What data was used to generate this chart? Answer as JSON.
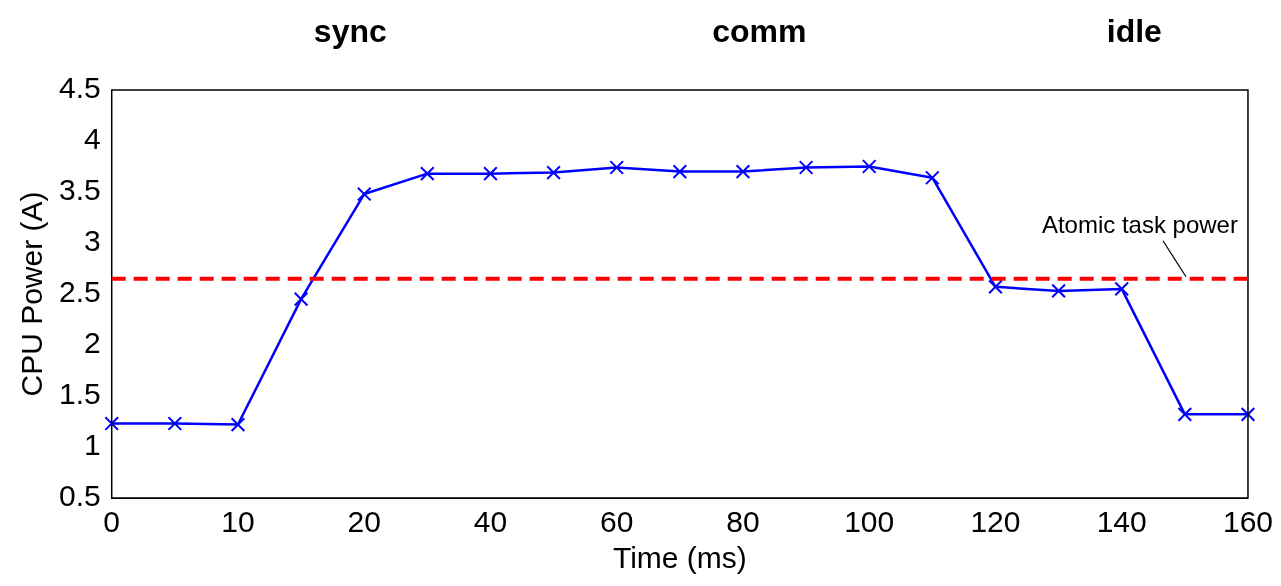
{
  "chart_data": {
    "type": "line",
    "xlabel": "Time (ms)",
    "ylabel": "CPU Power (A)",
    "categories": [
      "0",
      null,
      "10",
      null,
      "20",
      null,
      "40",
      null,
      "60",
      null,
      "80",
      null,
      "100",
      null,
      "120",
      null,
      "140",
      null,
      "160"
    ],
    "series": [
      {
        "color": "#0000ff",
        "values": [
          1.23,
          1.23,
          1.22,
          2.45,
          3.48,
          3.68,
          3.68,
          3.69,
          3.74,
          3.7,
          3.7,
          3.74,
          3.75,
          3.64,
          2.57,
          2.53,
          2.55,
          1.32,
          1.32
        ]
      }
    ],
    "ylim": [
      0.5,
      4.5
    ],
    "yticks": [
      0.5,
      1,
      1.5,
      2,
      2.5,
      3,
      3.5,
      4,
      4.5
    ],
    "ref_lines": [
      {
        "axis": "y",
        "value": 2.65,
        "label": "Atomic task power",
        "color": "#ff0000",
        "line_style": "dashed"
      }
    ],
    "annotations": [
      "sync",
      "comm",
      "idle"
    ],
    "marker": "cross",
    "line_style": "solid",
    "grid": false,
    "legend": false
  }
}
